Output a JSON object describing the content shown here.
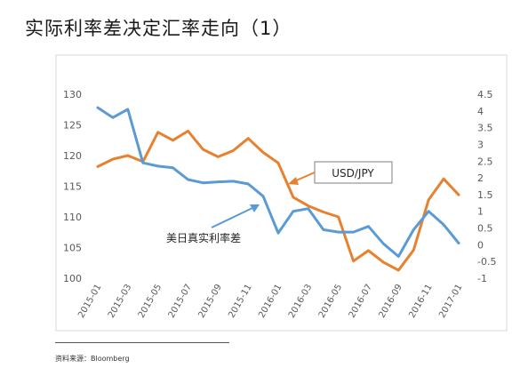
{
  "title": "实际利率差决定汇率走向（1）",
  "source": "资料来源：Bloomberg",
  "chart_data": {
    "type": "line",
    "categories": [
      "2015-01",
      "2015-02",
      "2015-03",
      "2015-04",
      "2015-05",
      "2015-06",
      "2015-07",
      "2015-08",
      "2015-09",
      "2015-10",
      "2015-11",
      "2015-12",
      "2016-01",
      "2016-02",
      "2016-03",
      "2016-04",
      "2016-05",
      "2016-06",
      "2016-07",
      "2016-08",
      "2016-09",
      "2016-10",
      "2016-11",
      "2016-12",
      "2017-01"
    ],
    "x_tick_labels": [
      "2015-01",
      "2015-03",
      "2015-05",
      "2015-07",
      "2015-09",
      "2015-11",
      "2016-01",
      "2016-03",
      "2016-05",
      "2016-07",
      "2016-09",
      "2016-11",
      "2017-01"
    ],
    "series": [
      {
        "name": "USD/JPY",
        "axis": "left",
        "color": "#E8812F",
        "values": [
          118.2,
          119.4,
          120.0,
          119.0,
          123.8,
          122.5,
          124.0,
          121.0,
          119.8,
          120.8,
          122.8,
          120.5,
          118.8,
          113.2,
          111.8,
          110.8,
          110.0,
          102.8,
          104.5,
          102.6,
          101.3,
          104.6,
          112.8,
          116.2,
          113.6
        ]
      },
      {
        "name": "美日真实利率差",
        "axis": "right",
        "color": "#5B9BD5",
        "values": [
          4.1,
          3.8,
          4.05,
          2.45,
          2.35,
          2.3,
          1.95,
          1.85,
          1.88,
          1.9,
          1.82,
          1.45,
          0.35,
          1.0,
          1.08,
          0.45,
          0.38,
          0.38,
          0.55,
          0.03,
          -0.35,
          0.45,
          1.0,
          0.6,
          0.05
        ]
      }
    ],
    "y_left": {
      "ticks": [
        "100",
        "105",
        "110",
        "115",
        "120",
        "125",
        "130"
      ],
      "min": 100,
      "max": 130
    },
    "y_right": {
      "ticks": [
        "-1",
        "-0.5",
        "0",
        "0.5",
        "1",
        "1.5",
        "2",
        "2.5",
        "3",
        "3.5",
        "4",
        "4.5"
      ],
      "min": -1,
      "max": 4.5
    },
    "grid": false,
    "annotations": [
      "USD/JPY",
      "美日真实利率差"
    ]
  }
}
